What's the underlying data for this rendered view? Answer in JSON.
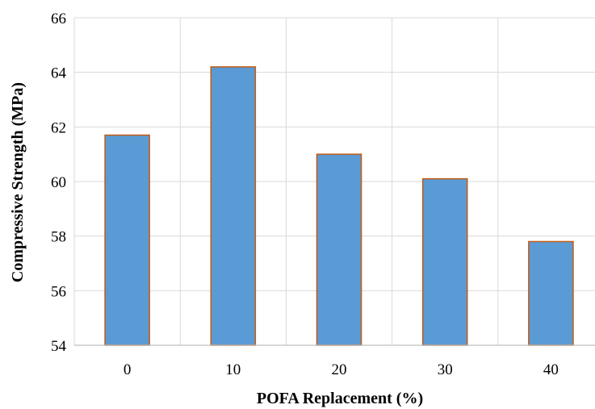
{
  "chart_data": {
    "type": "bar",
    "title": "",
    "xlabel": "POFA Replacement (%)",
    "ylabel": "Compressive Strength (MPa)",
    "categories": [
      "0",
      "10",
      "20",
      "30",
      "40"
    ],
    "values": [
      61.7,
      64.2,
      61.0,
      60.1,
      57.8
    ],
    "ylim": [
      54,
      66
    ],
    "yticks": [
      54,
      56,
      58,
      60,
      62,
      64,
      66
    ],
    "ytick_labels": [
      "54",
      "56",
      "58",
      "60",
      "62",
      "64",
      "66"
    ],
    "grid": true,
    "legend": "none",
    "colors": {
      "bar_fill": "#5b9bd5",
      "bar_stroke": "#c55a11",
      "grid": "#d9d9d9",
      "axis": "#bfbfbf"
    }
  }
}
